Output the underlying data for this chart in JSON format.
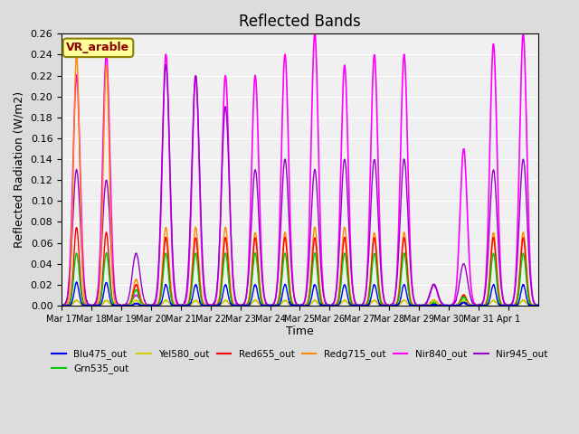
{
  "title": "Reflected Bands",
  "xlabel": "Time",
  "ylabel": "Reflected Radiation (W/m2)",
  "annotation_text": "VR_arable",
  "annotation_color": "#8B0000",
  "annotation_bg": "#FFFF99",
  "annotation_edge": "#8B8000",
  "ylim": [
    0,
    0.26
  ],
  "yticks": [
    0.0,
    0.02,
    0.04,
    0.06,
    0.08,
    0.1,
    0.12,
    0.14,
    0.16,
    0.18,
    0.2,
    0.22,
    0.24,
    0.26
  ],
  "series": {
    "Blu475_out": {
      "color": "#0000FF",
      "lw": 1.0
    },
    "Grn535_out": {
      "color": "#00CC00",
      "lw": 1.0
    },
    "Yel580_out": {
      "color": "#CCCC00",
      "lw": 1.0
    },
    "Red655_out": {
      "color": "#FF0000",
      "lw": 1.0
    },
    "Redg715_out": {
      "color": "#FF8800",
      "lw": 1.0
    },
    "Nir840_out": {
      "color": "#FF00FF",
      "lw": 1.2
    },
    "Nir945_out": {
      "color": "#9900CC",
      "lw": 1.0
    }
  },
  "xtick_positions": [
    0,
    1,
    2,
    3,
    4,
    5,
    6,
    7,
    8,
    9,
    10,
    11,
    12,
    13,
    14,
    15
  ],
  "xtick_labels": [
    "Mar 17",
    "Mar 18",
    "Mar 19",
    "Mar 20",
    "Mar 21",
    "Mar 22",
    "Mar 23",
    "Mar 24",
    "Mar 25",
    "Mar 26",
    "Mar 27",
    "Mar 28",
    "Mar 29",
    "Mar 30",
    "Mar 31",
    "Apr 1"
  ],
  "n_days": 16,
  "samples_per_day": 144,
  "nir840_peaks": [
    0.22,
    0.24,
    0.01,
    0.24,
    0.22,
    0.22,
    0.22,
    0.24,
    0.26,
    0.23,
    0.24,
    0.24,
    0.02,
    0.15,
    0.25,
    0.26
  ],
  "nir945_peaks": [
    0.13,
    0.12,
    0.05,
    0.23,
    0.22,
    0.19,
    0.13,
    0.14,
    0.13,
    0.14,
    0.14,
    0.14,
    0.02,
    0.04,
    0.13,
    0.14
  ],
  "redg715_peaks": [
    0.24,
    0.23,
    0.025,
    0.075,
    0.075,
    0.075,
    0.07,
    0.07,
    0.075,
    0.075,
    0.07,
    0.07,
    0.005,
    0.01,
    0.07,
    0.07
  ],
  "red655_peaks": [
    0.075,
    0.07,
    0.02,
    0.065,
    0.065,
    0.065,
    0.065,
    0.065,
    0.065,
    0.065,
    0.065,
    0.065,
    0.005,
    0.01,
    0.065,
    0.065
  ],
  "grn535_peaks": [
    0.05,
    0.05,
    0.015,
    0.05,
    0.05,
    0.05,
    0.05,
    0.05,
    0.05,
    0.05,
    0.05,
    0.05,
    0.003,
    0.008,
    0.05,
    0.05
  ],
  "yel580_peaks": [
    0.005,
    0.005,
    0.005,
    0.005,
    0.005,
    0.005,
    0.005,
    0.005,
    0.005,
    0.005,
    0.005,
    0.005,
    0.005,
    0.005,
    0.005,
    0.005
  ],
  "blu475_peaks": [
    0.022,
    0.022,
    0.002,
    0.02,
    0.02,
    0.02,
    0.02,
    0.02,
    0.02,
    0.02,
    0.02,
    0.02,
    0.001,
    0.003,
    0.02,
    0.02
  ]
}
